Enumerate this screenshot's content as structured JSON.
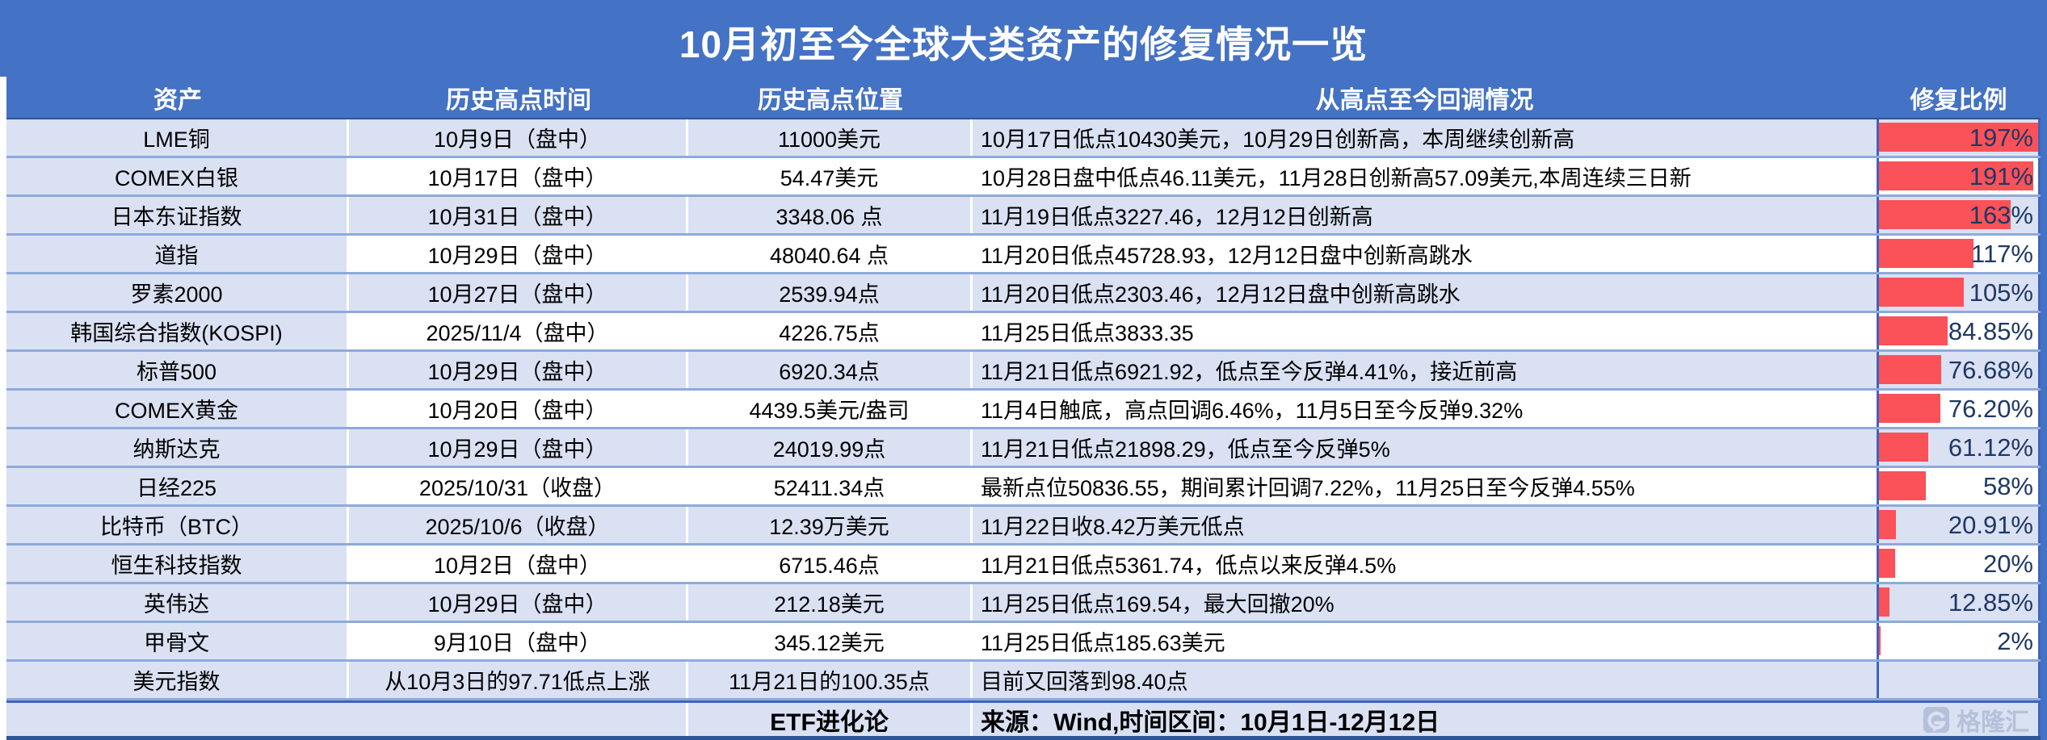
{
  "title": "10月初至今全球大类资产的修复情况一览",
  "columns": [
    "资产",
    "历史高点时间",
    "历史高点位置",
    "从高点至今回调情况",
    "修复比例"
  ],
  "bar_max": 197,
  "colors": {
    "page_bg": "#4472C4",
    "shaded_row_bg": "#DAE1F3",
    "white_row_bg": "#FFFFFF",
    "bar_red": "#FB5158",
    "percent_text": "#1F3864",
    "row_separator": "#8EAADB",
    "column_border_blue": "#3F63BE",
    "watermark_color": "#B5C0DA"
  },
  "rows": [
    {
      "asset": "LME铜",
      "peak_time": "10月9日（盘中）",
      "peak_level": "11000美元",
      "drawdown": "10月17日低点10430美元，10月29日创新高，本周继续创新高",
      "recovery_label": "197%",
      "recovery_value": 197
    },
    {
      "asset": "COMEX白银",
      "peak_time": "10月17日（盘中）",
      "peak_level": "54.47美元",
      "drawdown": "10月28日盘中低点46.11美元，11月28日创新高57.09美元,本周连续三日新",
      "recovery_label": "191%",
      "recovery_value": 191
    },
    {
      "asset": "日本东证指数",
      "peak_time": "10月31日（盘中）",
      "peak_level": "3348.06 点",
      "drawdown": "11月19日低点3227.46，12月12日创新高",
      "recovery_label": "163%",
      "recovery_value": 163
    },
    {
      "asset": "道指",
      "peak_time": "10月29日（盘中）",
      "peak_level": "48040.64 点",
      "drawdown": "11月20日低点45728.93，12月12日盘中创新高跳水",
      "recovery_label": "117%",
      "recovery_value": 117
    },
    {
      "asset": "罗素2000",
      "peak_time": "10月27日（盘中）",
      "peak_level": "2539.94点",
      "drawdown": "11月20日低点2303.46，12月12日盘中创新高跳水",
      "recovery_label": "105%",
      "recovery_value": 105
    },
    {
      "asset": "韩国综合指数(KOSPI)",
      "peak_time": "2025/11/4（盘中）",
      "peak_level": "4226.75点",
      "drawdown": "11月25日低点3833.35",
      "recovery_label": "84.85%",
      "recovery_value": 84.85
    },
    {
      "asset": "标普500",
      "peak_time": "10月29日（盘中）",
      "peak_level": "6920.34点",
      "drawdown": "11月21日低点6921.92，低点至今反弹4.41%，接近前高",
      "recovery_label": "76.68%",
      "recovery_value": 76.68
    },
    {
      "asset": "COMEX黄金",
      "peak_time": "10月20日（盘中）",
      "peak_level": "4439.5美元/盎司",
      "drawdown": "11月4日触底，高点回调6.46%，11月5日至今反弹9.32%",
      "recovery_label": "76.20%",
      "recovery_value": 76.2
    },
    {
      "asset": "纳斯达克",
      "peak_time": "10月29日（盘中）",
      "peak_level": "24019.99点",
      "drawdown": "11月21日低点21898.29，低点至今反弹5%",
      "recovery_label": "61.12%",
      "recovery_value": 61.12
    },
    {
      "asset": "日经225",
      "peak_time": "2025/10/31（收盘）",
      "peak_level": "52411.34点",
      "drawdown": "最新点位50836.55，期间累计回调7.22%，11月25日至今反弹4.55%",
      "recovery_label": "58%",
      "recovery_value": 58
    },
    {
      "asset": "比特币（BTC）",
      "peak_time": "2025/10/6（收盘）",
      "peak_level": "12.39万美元",
      "drawdown": "11月22日收8.42万美元低点",
      "recovery_label": "20.91%",
      "recovery_value": 20.91
    },
    {
      "asset": "恒生科技指数",
      "peak_time": "10月2日（盘中）",
      "peak_level": "6715.46点",
      "drawdown": "11月21日低点5361.74，低点以来反弹4.5%",
      "recovery_label": "20%",
      "recovery_value": 20
    },
    {
      "asset": "英伟达",
      "peak_time": "10月29日（盘中）",
      "peak_level": "212.18美元",
      "drawdown": "11月25日低点169.54，最大回撤20%",
      "recovery_label": "12.85%",
      "recovery_value": 12.85
    },
    {
      "asset": "甲骨文",
      "peak_time": "9月10日（盘中）",
      "peak_level": "345.12美元",
      "drawdown": "11月25日低点185.63美元",
      "recovery_label": "2%",
      "recovery_value": 2
    },
    {
      "asset": "美元指数",
      "peak_time": "从10月3日的97.71低点上涨",
      "peak_level": "11月21日的100.35点",
      "drawdown": "目前又回落到98.40点",
      "recovery_label": "",
      "recovery_value": 0
    }
  ],
  "footer": {
    "byline": "ETF进化论",
    "source": "来源：Wind,时间区间：10月1日-12月12日",
    "watermark": "格隆汇"
  },
  "chart_data": {
    "type": "table",
    "title": "10月初至今全球大类资产的修复情况一览",
    "columns": [
      "资产",
      "历史高点时间",
      "历史高点位置",
      "从高点至今回调情况",
      "修复比例"
    ],
    "bar_column": "修复比例",
    "bar_scale_max": 197,
    "bar_color": "#FB5158",
    "rows": [
      [
        "LME铜",
        "10月9日（盘中）",
        "11000美元",
        "10月17日低点10430美元，10月29日创新高，本周继续创新高",
        "197%"
      ],
      [
        "COMEX白银",
        "10月17日（盘中）",
        "54.47美元",
        "10月28日盘中低点46.11美元，11月28日创新高57.09美元,本周连续三日新",
        "191%"
      ],
      [
        "日本东证指数",
        "10月31日（盘中）",
        "3348.06 点",
        "11月19日低点3227.46，12月12日创新高",
        "163%"
      ],
      [
        "道指",
        "10月29日（盘中）",
        "48040.64 点",
        "11月20日低点45728.93，12月12日盘中创新高跳水",
        "117%"
      ],
      [
        "罗素2000",
        "10月27日（盘中）",
        "2539.94点",
        "11月20日低点2303.46，12月12日盘中创新高跳水",
        "105%"
      ],
      [
        "韩国综合指数(KOSPI)",
        "2025/11/4（盘中）",
        "4226.75点",
        "11月25日低点3833.35",
        "84.85%"
      ],
      [
        "标普500",
        "10月29日（盘中）",
        "6920.34点",
        "11月21日低点6921.92，低点至今反弹4.41%，接近前高",
        "76.68%"
      ],
      [
        "COMEX黄金",
        "10月20日（盘中）",
        "4439.5美元/盎司",
        "11月4日触底，高点回调6.46%，11月5日至今反弹9.32%",
        "76.20%"
      ],
      [
        "纳斯达克",
        "10月29日（盘中）",
        "24019.99点",
        "11月21日低点21898.29，低点至今反弹5%",
        "61.12%"
      ],
      [
        "日经225",
        "2025/10/31（收盘）",
        "52411.34点",
        "最新点位50836.55，期间累计回调7.22%，11月25日至今反弹4.55%",
        "58%"
      ],
      [
        "比特币（BTC）",
        "2025/10/6（收盘）",
        "12.39万美元",
        "11月22日收8.42万美元低点",
        "20.91%"
      ],
      [
        "恒生科技指数",
        "10月2日（盘中）",
        "6715.46点",
        "11月21日低点5361.74，低点以来反弹4.5%",
        "20%"
      ],
      [
        "英伟达",
        "10月29日（盘中）",
        "212.18美元",
        "11月25日低点169.54，最大回撤20%",
        "12.85%"
      ],
      [
        "甲骨文",
        "9月10日（盘中）",
        "345.12美元",
        "11月25日低点185.63美元",
        "2%"
      ],
      [
        "美元指数",
        "从10月3日的97.71低点上涨",
        "11月21日的100.35点",
        "目前又回落到98.40点",
        ""
      ]
    ],
    "source_note": "来源：Wind,时间区间：10月1日-12月12日",
    "byline": "ETF进化论"
  }
}
